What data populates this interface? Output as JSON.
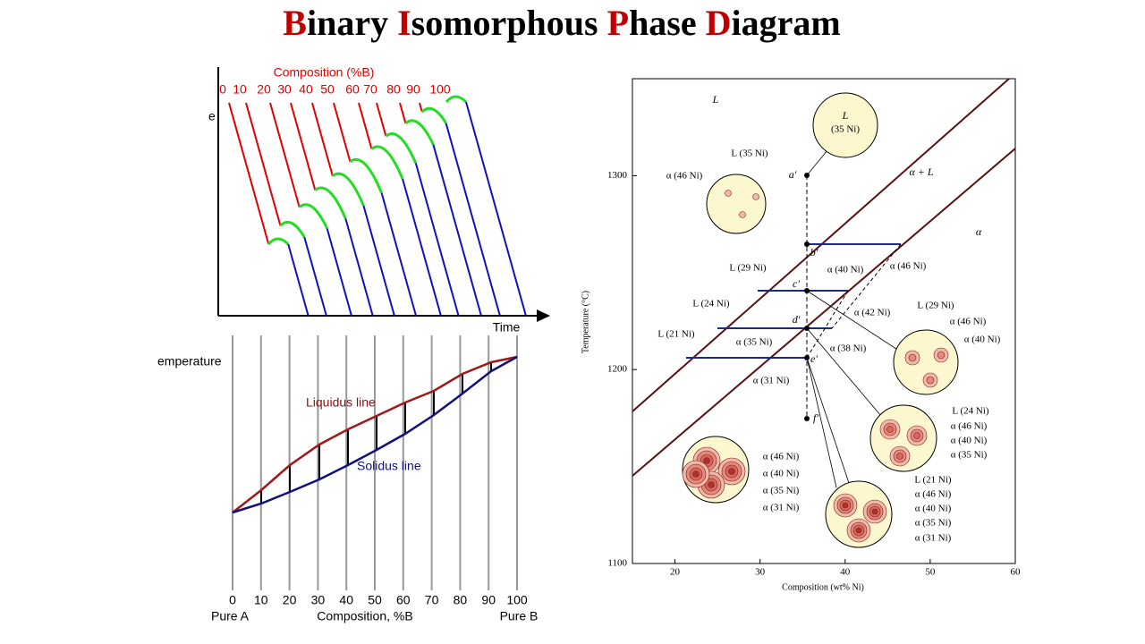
{
  "title": {
    "words": [
      {
        "initial": "B",
        "rest": "inary"
      },
      {
        "initial": "I",
        "rest": "somorphous"
      },
      {
        "initial": "P",
        "rest": "hase"
      },
      {
        "initial": "D",
        "rest": "iagram"
      }
    ]
  },
  "cooling_curves": {
    "composition_title": "Composition (%B)",
    "compositions": [
      "0",
      "10",
      "20",
      "30",
      "40",
      "50",
      "60",
      "70",
      "80",
      "90",
      "100"
    ],
    "y_label": "e",
    "x_label": "Time"
  },
  "phase_sketch": {
    "y_label": "emperature",
    "xticks": [
      0,
      10,
      20,
      30,
      40,
      50,
      60,
      70,
      80,
      90,
      100
    ],
    "left_label": "Pure A",
    "x_label": "Composition, %B",
    "right_label": "Pure B",
    "liquidus_label": "Liquidus line",
    "solidus_label": "Solidus line"
  },
  "cu_ni": {
    "y_label": "Temperature (°C)",
    "x_label": "Composition (wt% Ni)",
    "ylim": [
      1100,
      1350
    ],
    "yticks": [
      1300,
      1200,
      1100
    ],
    "xlim": [
      15,
      60
    ],
    "xticks": [
      20,
      30,
      40,
      50,
      60
    ],
    "regions": [
      "L",
      "α + L",
      "α"
    ],
    "points": [
      "a′",
      "b′",
      "c′",
      "d′",
      "e′",
      "f′"
    ],
    "bubble": [
      "L",
      "(35 Ni)"
    ],
    "annotations": [
      "L (35 Ni)",
      "α (46 Ni)",
      "L (29 Ni)",
      "α (40 Ni)",
      "α (46 Ni)",
      "L (24 Ni)",
      "α (42 Ni)",
      "L (21 Ni)",
      "α (35 Ni)",
      "α (38 Ni)",
      "α (31 Ni)",
      "L (29 Ni)",
      "α (46 Ni)",
      "α (40 Ni)",
      "L (24 Ni)",
      "α (46 Ni)",
      "α (40 Ni)",
      "α (35 Ni)",
      "α (46 Ni)",
      "α (40 Ni)",
      "α (35 Ni)",
      "α (31 Ni)",
      "L (21 Ni)",
      "α (46 Ni)",
      "α (40 Ni)",
      "α (35 Ni)",
      "α (31 Ni)"
    ]
  }
}
